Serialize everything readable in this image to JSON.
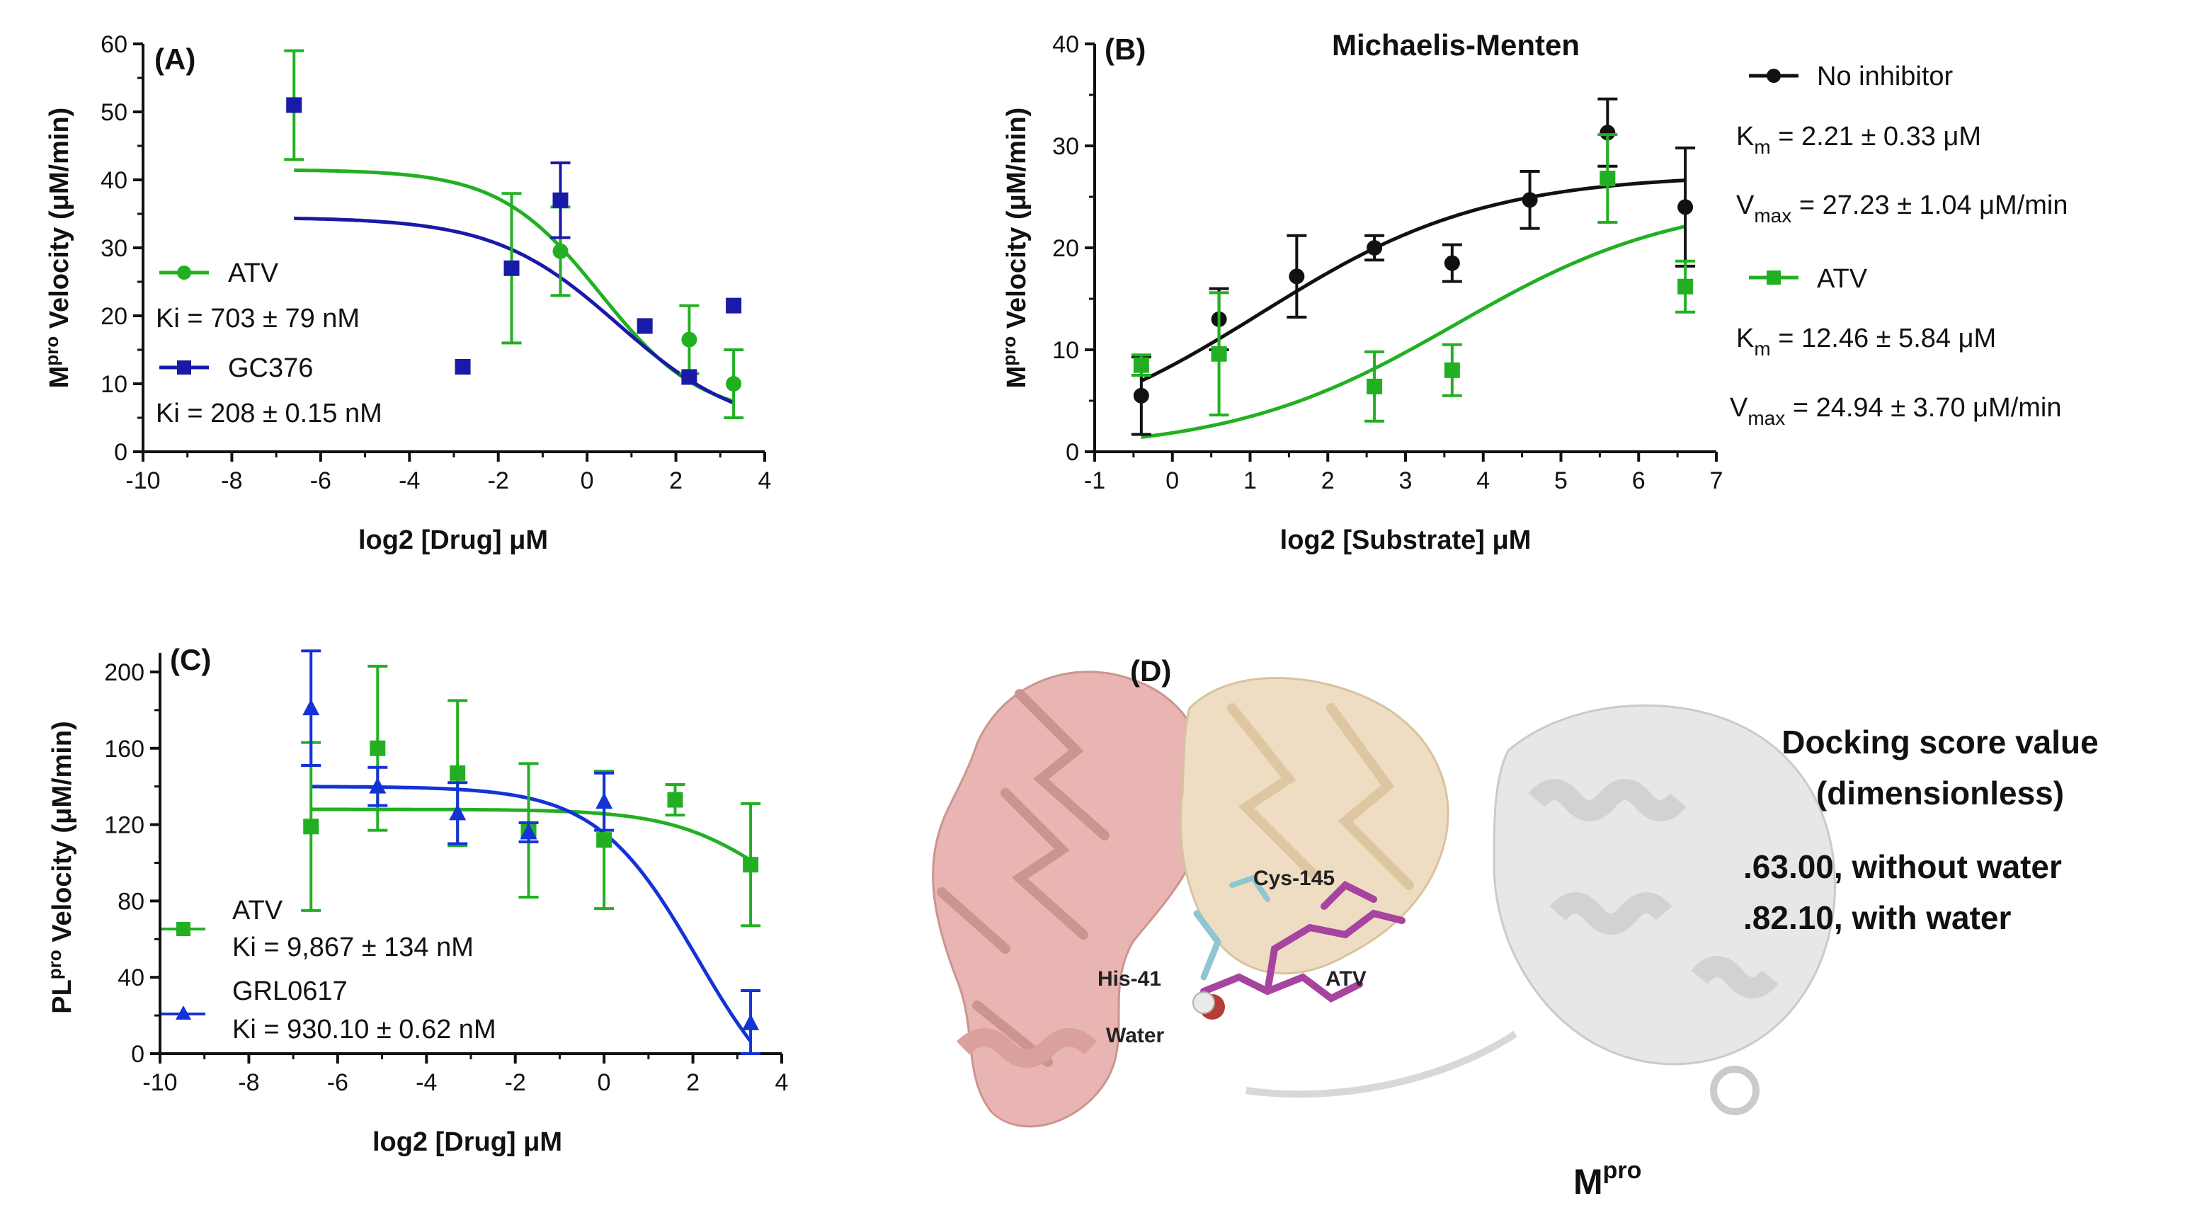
{
  "colors": {
    "green": "#22b022",
    "green_text": "#1a8a1a",
    "navy": "#1a1aa8",
    "blue": "#1433d6",
    "blue_text": "#1a2fc8",
    "black": "#111111"
  },
  "chart_data": [
    {
      "panel": "(A)",
      "type": "scatter",
      "title": "",
      "xlabel": "log2 [Drug] μM",
      "ylabel_main": "M",
      "ylabel_sup": "pro",
      "ylabel_rest": " Velocity (μM/min)",
      "xlim": [
        -10,
        4
      ],
      "ylim": [
        0,
        60
      ],
      "x_ticks": [
        -10,
        -8,
        -6,
        -4,
        -2,
        0,
        2,
        4
      ],
      "y_ticks": [
        0,
        10,
        20,
        30,
        40,
        50,
        60
      ],
      "series": [
        {
          "name": "ATV",
          "marker": "circle",
          "color": "#22b022",
          "x": [
            -6.6,
            -1.7,
            -0.6,
            2.3,
            3.3
          ],
          "y": [
            51,
            27,
            29.5,
            16.5,
            10
          ],
          "err": [
            8,
            11,
            6.5,
            5,
            5
          ],
          "fit": {
            "top": 41.5,
            "bottom": 5,
            "ic50": 0.3,
            "slope": 0.55
          },
          "ki": "Ki = 703 ± 79 nM"
        },
        {
          "name": "GC376",
          "marker": "square",
          "color": "#1a1aa8",
          "x": [
            -6.6,
            -2.8,
            -1.7,
            -0.6,
            1.3,
            2.3,
            3.3
          ],
          "y": [
            51,
            12.5,
            27,
            37,
            18.5,
            11,
            21.5
          ],
          "err": [
            0,
            0,
            0,
            5.5,
            0,
            0,
            0
          ],
          "fit": {
            "top": 34.5,
            "bottom": 3,
            "ic50": 0.7,
            "slope": 0.45
          },
          "ki": "Ki = 208 ± 0.15 nM"
        }
      ]
    },
    {
      "panel": "(B)",
      "type": "scatter",
      "title": "Michaelis-Menten",
      "xlabel": "log2 [Substrate] μM",
      "ylabel_main": "M",
      "ylabel_sup": "pro",
      "ylabel_rest": " Velocity (μM/min)",
      "xlim": [
        -1,
        7
      ],
      "ylim": [
        0,
        40
      ],
      "x_ticks": [
        -1,
        0,
        1,
        2,
        3,
        4,
        5,
        6,
        7
      ],
      "y_ticks": [
        0,
        10,
        20,
        30,
        40
      ],
      "series": [
        {
          "name": "No inhibitor",
          "marker": "circle",
          "color": "#111111",
          "x": [
            -0.4,
            0.6,
            1.6,
            2.6,
            3.6,
            4.6,
            5.6,
            6.6
          ],
          "y": [
            5.5,
            13,
            17.2,
            20,
            18.5,
            24.7,
            31.3,
            24
          ],
          "err": [
            3.8,
            3,
            4,
            1.2,
            1.8,
            2.8,
            3.3,
            5.8
          ],
          "fit": {
            "vmax": 27.23,
            "km": 2.21,
            "from": -0.4
          },
          "km_label": "K",
          "km_sub": "m",
          "km_value": " = 2.21 ± 0.33 μM",
          "vmax_label": "V",
          "vmax_sub": "max",
          "vmax_value": " = 27.23 ± 1.04 μM/min"
        },
        {
          "name": "ATV",
          "marker": "square",
          "color": "#22b022",
          "x": [
            -0.4,
            0.6,
            2.6,
            3.6,
            5.6,
            6.6
          ],
          "y": [
            8.5,
            9.6,
            6.4,
            8,
            26.8,
            16.2
          ],
          "err": [
            1,
            6,
            3.4,
            2.5,
            4.3,
            2.5
          ],
          "fit": {
            "vmax": 24.94,
            "km": 12.46,
            "from": -0.4
          },
          "km_label": "K",
          "km_sub": "m",
          "km_value": " = 12.46 ± 5.84 μM",
          "vmax_label": "V",
          "vmax_sub": "max",
          "vmax_value": " = 24.94 ± 3.70 μM/min"
        }
      ]
    },
    {
      "panel": "(C)",
      "type": "scatter",
      "title": "",
      "xlabel": "log2 [Drug] μM",
      "ylabel_main": "PL",
      "ylabel_sup": "pro",
      "ylabel_rest": " Velocity (μM/min)",
      "xlim": [
        -10,
        4
      ],
      "ylim": [
        0,
        210
      ],
      "x_ticks": [
        -10,
        -8,
        -6,
        -4,
        -2,
        0,
        2,
        4
      ],
      "y_ticks": [
        0,
        40,
        80,
        120,
        160,
        200
      ],
      "series": [
        {
          "name": "ATV",
          "marker": "square",
          "color": "#22b022",
          "x": [
            -6.6,
            -5.1,
            -3.3,
            -1.7,
            0,
            1.6,
            3.3
          ],
          "y": [
            119,
            160,
            147,
            117,
            112,
            133,
            99
          ],
          "err": [
            44,
            43,
            38,
            35,
            36,
            8,
            32
          ],
          "fit": {
            "top": 128,
            "bottom": 60,
            "ic50": 3.8,
            "slope": 0.55
          },
          "ki": "Ki = 9,867 ± 134 nM"
        },
        {
          "name": "GRL0617",
          "marker": "triangle",
          "color": "#1433d6",
          "x": [
            -6.6,
            -5.1,
            -3.3,
            -1.7,
            0,
            3.3
          ],
          "y": [
            181,
            140,
            126,
            116,
            132,
            16
          ],
          "err": [
            30,
            10,
            16,
            5,
            15,
            17
          ],
          "fit": {
            "top": 140,
            "bottom": -40,
            "ic50": 2.1,
            "slope": 0.55
          },
          "ki": "Ki = 930.10 ± 0.62 nM"
        }
      ]
    }
  ],
  "panel_d": {
    "label": "(D)",
    "labels": {
      "cys": "Cys-145",
      "his": "His-41",
      "atv": "ATV",
      "water": "Water",
      "mpro_main": "M",
      "mpro_sup": "pro"
    },
    "docking_title_1": "Docking score value",
    "docking_title_2": "(dimensionless)",
    "docking_line_1": ".63.00, without water",
    "docking_line_2": ".82.10, with water"
  }
}
